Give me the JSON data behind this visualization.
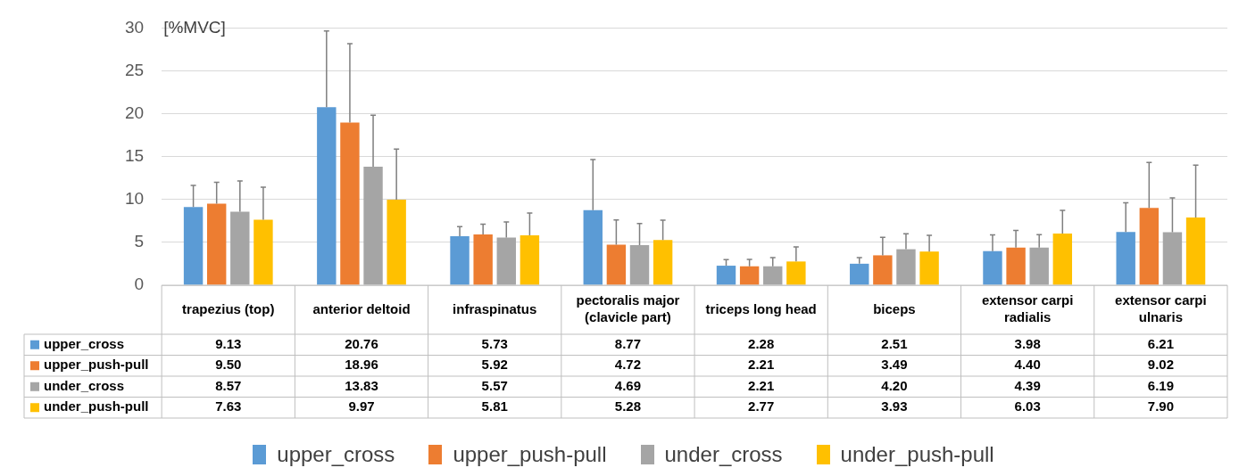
{
  "chart_data": {
    "type": "bar",
    "ylabel": "[%MVC]",
    "categories": [
      "trapezius (top)",
      "anterior deltoid",
      "infraspinatus",
      "pectoralis major (clavicle part)",
      "triceps long head",
      "biceps",
      "extensor carpi radialis",
      "extensor carpi ulnaris"
    ],
    "series": [
      {
        "name": "upper_cross",
        "color": "#5b9bd5",
        "values": [
          9.13,
          20.76,
          5.73,
          8.77,
          2.28,
          2.51,
          3.98,
          6.21
        ],
        "value_labels": [
          "9.13",
          "20.76",
          "5.73",
          "8.77",
          "2.28",
          "2.51",
          "3.98",
          "6.21"
        ],
        "errors": [
          2.5,
          8.9,
          1.1,
          5.9,
          0.7,
          0.7,
          1.9,
          3.4
        ]
      },
      {
        "name": "upper_push-pull",
        "color": "#ed7d31",
        "values": [
          9.5,
          18.96,
          5.92,
          4.72,
          2.21,
          3.49,
          4.4,
          9.02
        ],
        "value_labels": [
          "9.50",
          "18.96",
          "5.92",
          "4.72",
          "2.21",
          "3.49",
          "4.40",
          "9.02"
        ],
        "errors": [
          2.5,
          9.2,
          1.2,
          2.9,
          0.8,
          2.1,
          2.0,
          5.3
        ]
      },
      {
        "name": "under_cross",
        "color": "#a5a5a5",
        "values": [
          8.57,
          13.83,
          5.57,
          4.69,
          2.21,
          4.2,
          4.39,
          6.19
        ],
        "value_labels": [
          "8.57",
          "13.83",
          "5.57",
          "4.69",
          "2.21",
          "4.20",
          "4.39",
          "6.19"
        ],
        "errors": [
          3.6,
          6.0,
          1.8,
          2.5,
          1.0,
          1.8,
          1.5,
          4.0
        ]
      },
      {
        "name": "under_push-pull",
        "color": "#ffc000",
        "values": [
          7.63,
          9.97,
          5.81,
          5.28,
          2.77,
          3.93,
          6.03,
          7.9
        ],
        "value_labels": [
          "7.63",
          "9.97",
          "5.81",
          "5.28",
          "2.77",
          "3.93",
          "6.03",
          "7.90"
        ],
        "errors": [
          3.8,
          5.9,
          2.6,
          2.3,
          1.7,
          1.9,
          2.7,
          6.1
        ]
      }
    ],
    "ylim": [
      0,
      30
    ],
    "yticks": [
      0,
      5,
      10,
      15,
      20,
      25,
      30
    ],
    "grid": "y",
    "legend": "bottom"
  }
}
